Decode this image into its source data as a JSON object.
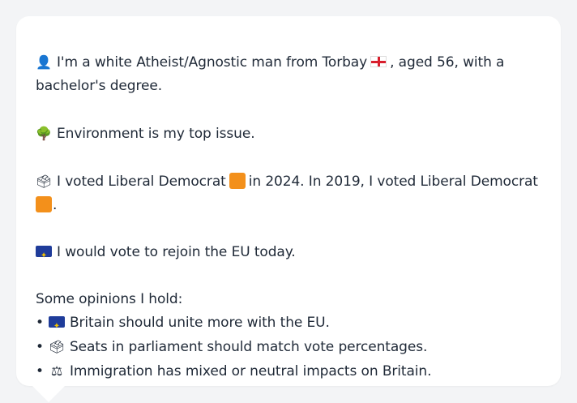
{
  "profile": {
    "identity": {
      "icon": "person-silhouette",
      "text_before_flag": "I'm a white Atheist/Agnostic man from Torbay",
      "flag": "england-flag",
      "text_after_flag": ", aged 56, with a",
      "text_line2": "bachelor's degree."
    },
    "top_issue": {
      "icon": "deciduous-tree",
      "text": "Environment is my top issue."
    },
    "voting": {
      "icon": "ballot-box",
      "text_part1": "I voted Liberal Democrat",
      "party_color": "#f3901b",
      "text_part2": "in 2024. In 2019, I voted Liberal Democrat",
      "text_end": "."
    },
    "eu": {
      "icon": "eu-flag",
      "text": "I would vote to rejoin the EU today."
    },
    "opinions": {
      "heading": "Some opinions I hold:",
      "bullet": "•",
      "items": [
        {
          "icon": "eu-flag",
          "text": "Britain should unite more with the EU."
        },
        {
          "icon": "ballot-box",
          "text": "Seats in parliament should match vote percentages."
        },
        {
          "icon": "balance-scale",
          "text": "Immigration has mixed or neutral impacts on Britain."
        }
      ]
    }
  },
  "colors": {
    "background": "#f3f4f6",
    "card": "#ffffff",
    "text": "#1f2937",
    "eu_blue": "#1f3c9a",
    "eu_star": "#f2c200",
    "england_red": "#d81e2c"
  }
}
